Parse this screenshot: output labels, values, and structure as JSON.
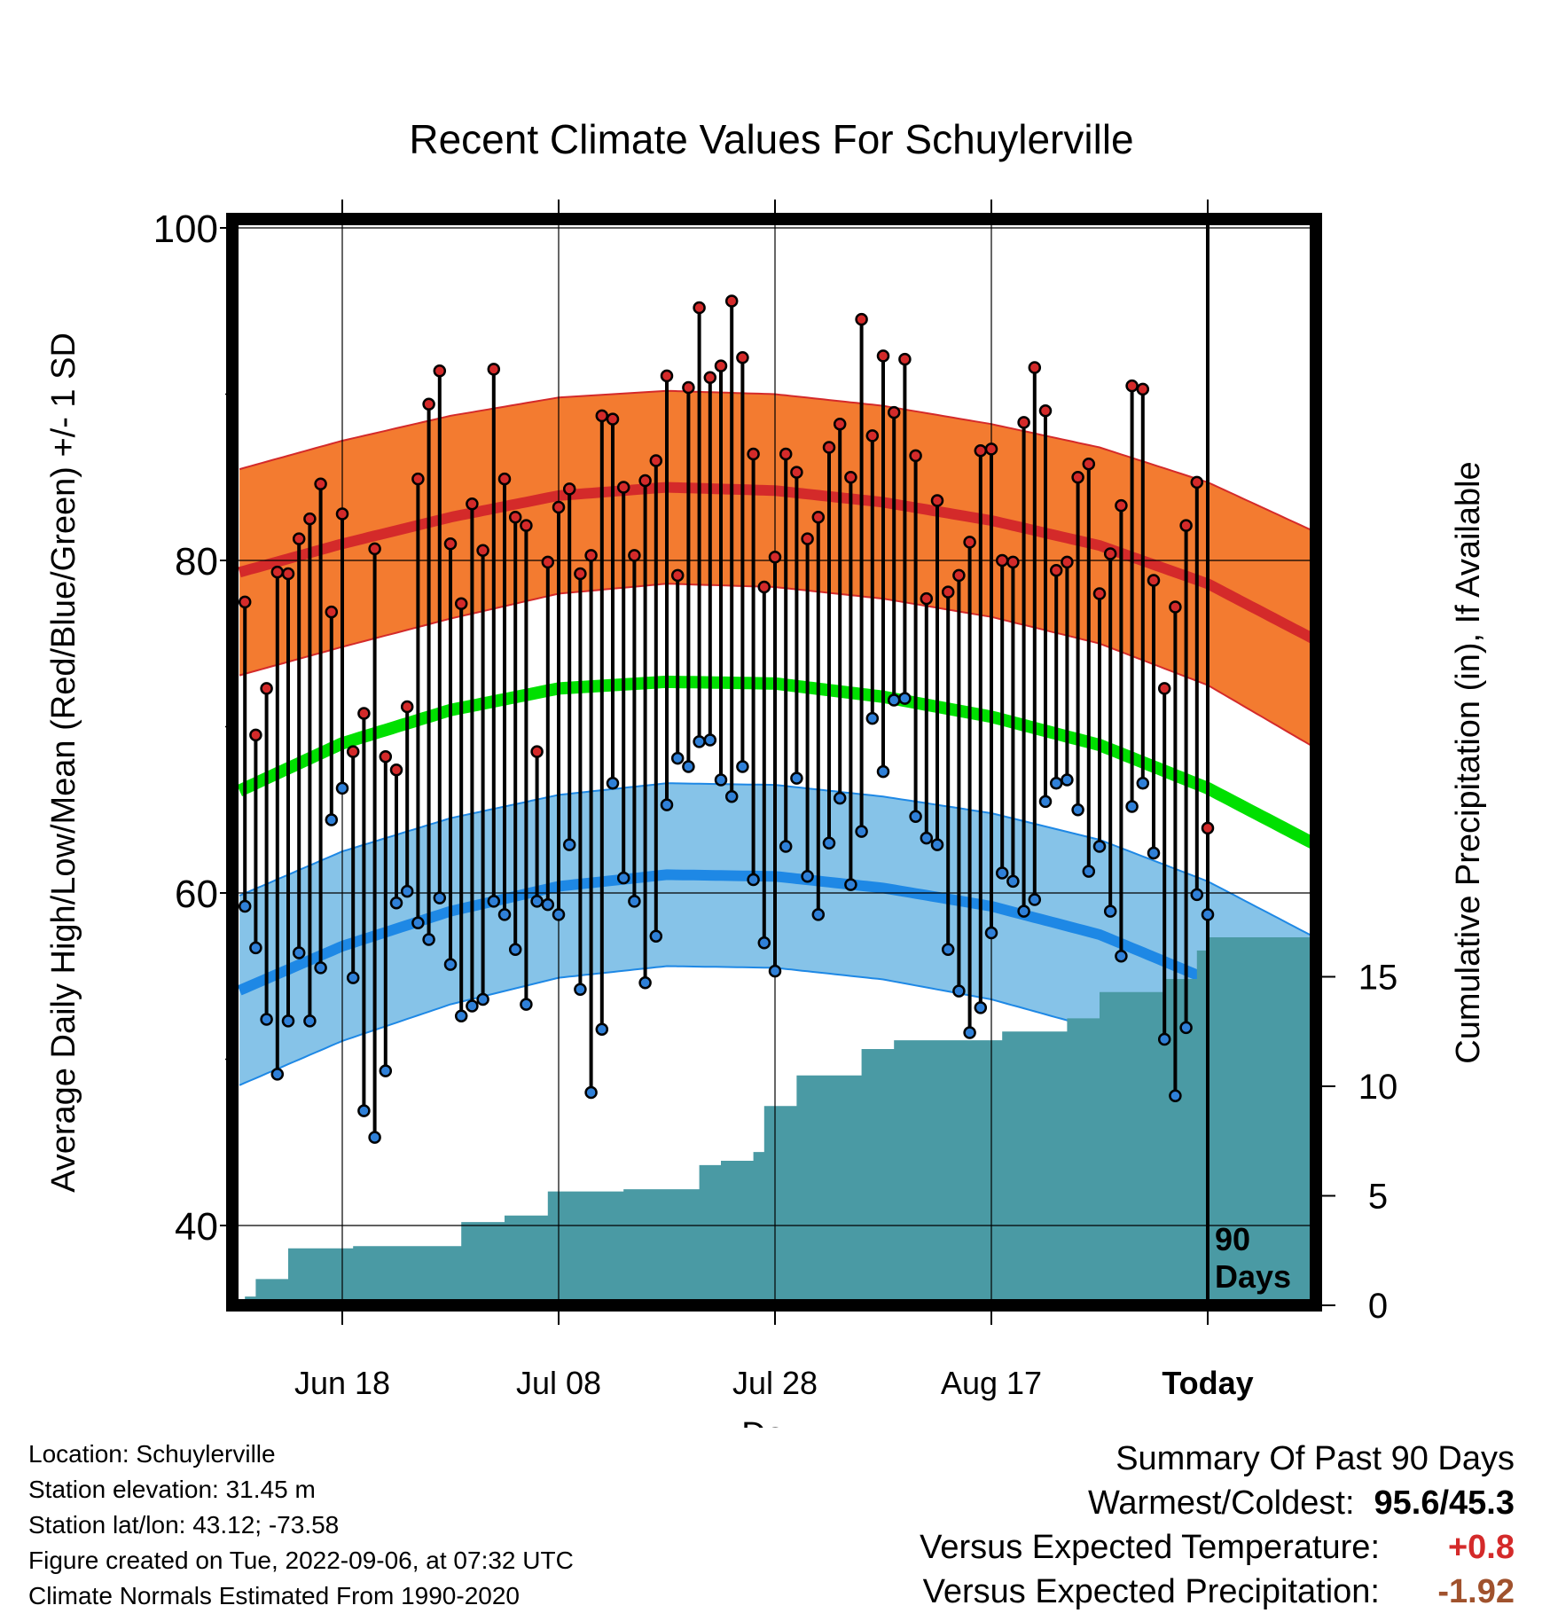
{
  "chart_data": {
    "type": "line",
    "title": "Recent Climate Values For Schuylerville",
    "xlabel": "Day",
    "ylabel": "Average Daily High/Low/Mean (Red/Blue/Green) +/- 1 SD",
    "y2label": "Cumulative Precipitation (in), If Available",
    "ylim": [
      35,
      102
    ],
    "y_ticks": [
      "100",
      "80",
      "60",
      "40"
    ],
    "y_tick_values": [
      100,
      80,
      60,
      40
    ],
    "y2lim": [
      0,
      48
    ],
    "y2_ticks": [
      "15",
      "10",
      "5",
      "0"
    ],
    "y2_tick_values": [
      15,
      10,
      5,
      0
    ],
    "x_day_range": [
      -90,
      10
    ],
    "x_ticks": [
      "Jun 18",
      "Jul 08",
      "Jul 28",
      "Aug 17",
      "Today"
    ],
    "x_tick_days": [
      -80,
      -60,
      -40,
      -20,
      0
    ],
    "today_label": "90\nDays",
    "today_label_line1": "90",
    "today_label_line2": "Days",
    "grid": true,
    "colors": {
      "high_band": "#f37b30",
      "high_mean": "#d42a2a",
      "low_band": "#86c3e8",
      "low_mean": "#1e88e5",
      "mean_line": "#00e000",
      "precip": "#4a9aa4",
      "high_dot": "#d42a2a",
      "low_dot": "#2f80d8"
    },
    "normals_day_index": [
      -90,
      -80,
      -70,
      -60,
      -50,
      -40,
      -30,
      -20,
      -10,
      0,
      10
    ],
    "normal_high": [
      79.2,
      81.0,
      82.6,
      83.9,
      84.4,
      84.2,
      83.5,
      82.4,
      80.9,
      78.6,
      75.2
    ],
    "normal_high_sd": [
      6.2,
      6.2,
      6.1,
      5.9,
      5.8,
      5.8,
      5.8,
      5.8,
      5.9,
      6.1,
      6.5
    ],
    "normal_low": [
      54.0,
      56.8,
      58.9,
      60.4,
      61.1,
      61.0,
      60.3,
      59.2,
      57.5,
      54.8,
      51.2
    ],
    "normal_low_sd": [
      5.7,
      5.7,
      5.6,
      5.5,
      5.5,
      5.5,
      5.5,
      5.6,
      5.7,
      5.9,
      6.1
    ],
    "normal_mean": [
      66.0,
      69.0,
      71.0,
      72.3,
      72.7,
      72.6,
      71.8,
      70.6,
      68.9,
      66.3,
      62.9
    ],
    "series": [
      {
        "name": "High",
        "values": [
          77.5,
          69.5,
          72.3,
          79.3,
          79.2,
          81.3,
          82.5,
          84.6,
          76.9,
          82.8,
          68.5,
          70.8,
          80.7,
          68.2,
          67.4,
          71.2,
          84.9,
          89.4,
          91.4,
          81.0,
          77.4,
          83.4,
          80.6,
          91.5,
          84.9,
          82.6,
          82.1,
          68.5,
          79.9,
          83.2,
          84.3,
          79.2,
          80.3,
          88.7,
          88.5,
          84.4,
          80.3,
          84.8,
          86.0,
          91.1,
          79.1,
          90.4,
          95.2,
          91.0,
          91.7,
          95.6,
          92.2,
          86.4,
          78.4,
          80.2,
          86.4,
          85.3,
          81.3,
          82.6,
          86.8,
          88.2,
          85.0,
          94.5,
          87.5,
          92.3,
          88.9,
          92.1,
          86.3,
          77.7,
          83.6,
          78.1,
          79.1,
          81.1,
          86.6,
          86.7,
          80.0,
          79.9,
          88.3,
          91.6,
          89.0,
          79.4,
          79.9,
          85.0,
          85.8,
          78.0,
          80.4,
          83.3,
          90.5,
          90.3,
          78.8,
          72.3,
          77.2,
          82.1,
          84.7,
          63.9
        ]
      },
      {
        "name": "Low",
        "values": [
          59.2,
          56.7,
          52.4,
          49.1,
          52.3,
          56.4,
          52.3,
          55.5,
          64.4,
          66.3,
          54.9,
          46.9,
          45.3,
          49.3,
          59.4,
          60.1,
          58.2,
          57.2,
          59.7,
          55.7,
          52.6,
          53.2,
          53.6,
          59.5,
          58.7,
          56.6,
          53.3,
          59.5,
          59.3,
          58.7,
          62.9,
          54.2,
          48.0,
          51.8,
          66.6,
          60.9,
          59.5,
          54.6,
          57.4,
          65.3,
          68.1,
          67.6,
          69.1,
          69.2,
          66.8,
          65.8,
          67.6,
          60.8,
          57.0,
          55.3,
          62.8,
          66.9,
          61.0,
          58.7,
          63.0,
          65.7,
          60.5,
          63.7,
          70.5,
          67.3,
          71.6,
          71.7,
          64.6,
          63.3,
          62.9,
          56.6,
          54.1,
          51.6,
          53.1,
          57.6,
          61.2,
          60.7,
          58.9,
          59.6,
          65.5,
          66.6,
          66.8,
          65.0,
          61.3,
          62.8,
          58.9,
          56.2,
          65.2,
          66.6,
          62.4,
          51.2,
          47.8,
          51.9,
          59.9,
          58.7
        ]
      },
      {
        "name": "Cumulative Precipitation",
        "values": [
          0.4,
          1.2,
          1.2,
          1.2,
          2.6,
          2.6,
          2.6,
          2.6,
          2.6,
          2.6,
          2.7,
          2.7,
          2.7,
          2.7,
          2.7,
          2.7,
          2.7,
          2.7,
          2.7,
          2.7,
          3.8,
          3.8,
          3.8,
          3.8,
          4.1,
          4.1,
          4.1,
          4.1,
          5.2,
          5.2,
          5.2,
          5.2,
          5.2,
          5.2,
          5.2,
          5.3,
          5.3,
          5.3,
          5.3,
          5.3,
          5.3,
          5.3,
          6.4,
          6.4,
          6.6,
          6.6,
          6.6,
          7.0,
          9.1,
          9.1,
          9.1,
          10.5,
          10.5,
          10.5,
          10.5,
          10.5,
          10.5,
          11.7,
          11.7,
          11.7,
          12.1,
          12.1,
          12.1,
          12.1,
          12.1,
          12.1,
          12.1,
          12.1,
          12.1,
          12.1,
          12.5,
          12.5,
          12.5,
          12.5,
          12.5,
          12.5,
          13.1,
          13.1,
          13.1,
          14.3,
          14.3,
          14.3,
          14.3,
          14.3,
          14.3,
          14.9,
          14.9,
          14.9,
          16.2,
          16.8
        ]
      }
    ]
  },
  "footer": {
    "location": "Location: Schuylerville",
    "elevation": "Station elevation: 31.45 m",
    "latlon": "Station lat/lon: 43.12; -73.58",
    "created": "Figure created on Tue, 2022-09-06, at 07:32 UTC",
    "normals": "Climate Normals Estimated From 1990-2020"
  },
  "summary": {
    "heading": "Summary Of Past 90 Days",
    "warmest_coldest_label": "Warmest/Coldest:",
    "warmest_coldest_value": "95.6/45.3",
    "temp_label": "Versus Expected Temperature:",
    "temp_value": "+0.8",
    "precip_label": "Versus Expected Precipitation:",
    "precip_value": "-1.92",
    "temp_color": "#d42a2a",
    "precip_color": "#a0522d"
  }
}
